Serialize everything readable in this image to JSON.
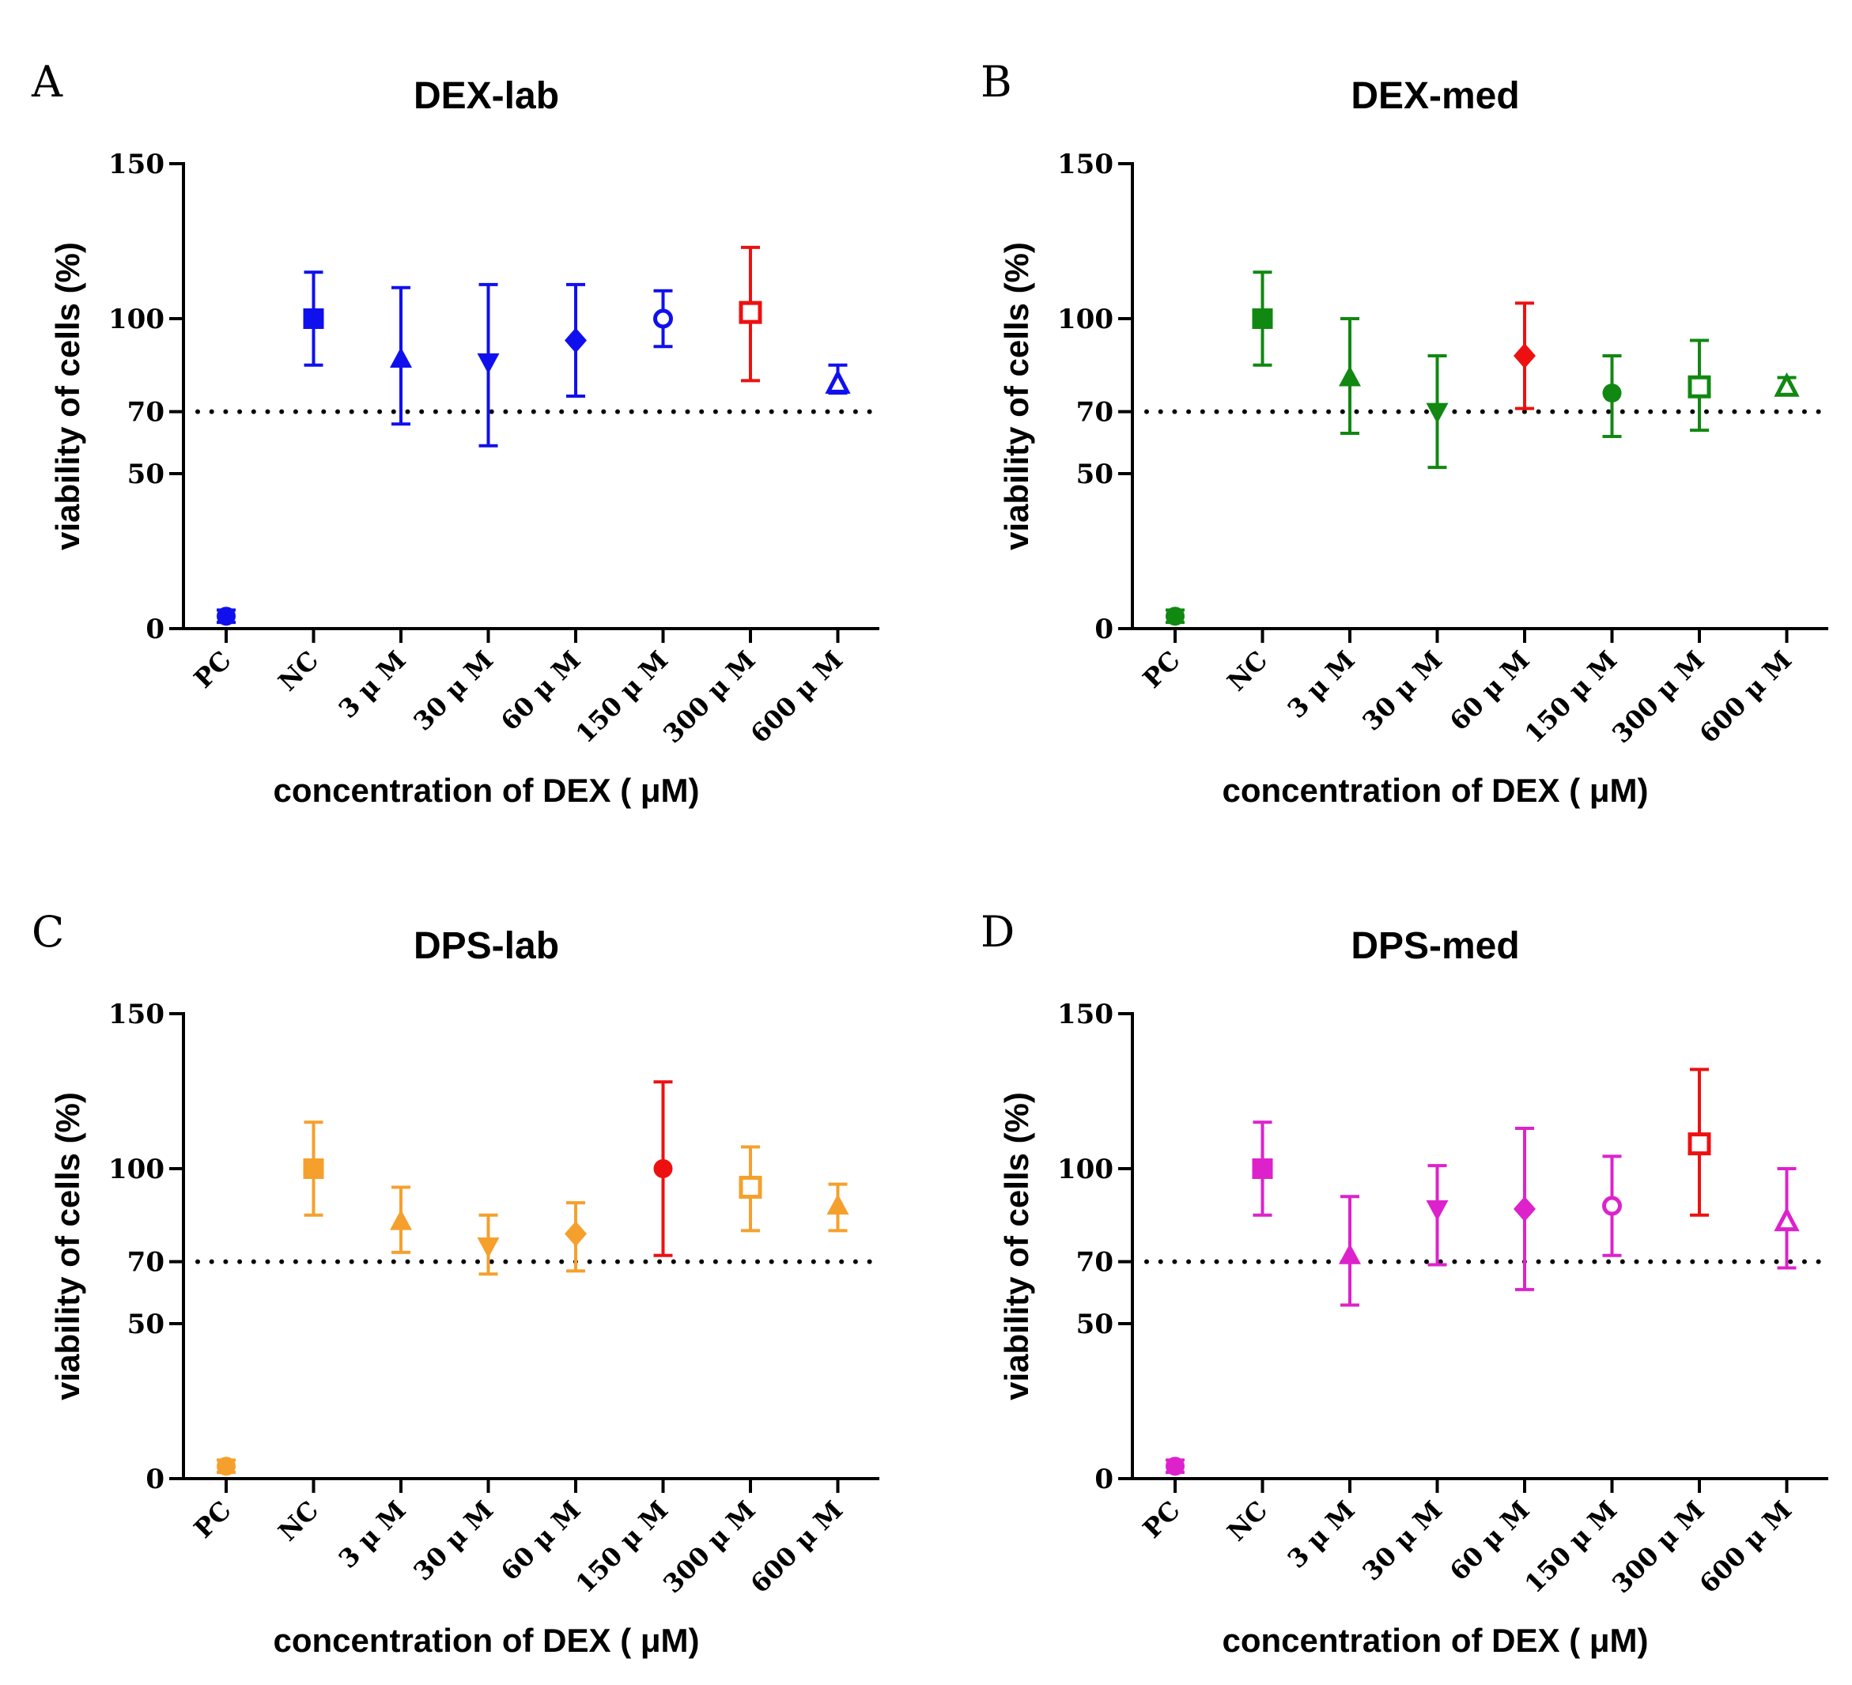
{
  "figure": {
    "background": "#ffffff"
  },
  "chart_data": [
    {
      "letter": "A",
      "type": "scatter",
      "title": "DEX-lab",
      "xlabel": "concentration of DEX ( μM)",
      "ylabel": "viability of cells (%)",
      "categories": [
        "PC",
        "NC",
        "3 μ M",
        "30 μ M",
        "60 μ M",
        "150 μ M",
        "300 μ M",
        "600 μ M"
      ],
      "yticks": [
        0,
        50,
        70,
        100,
        150
      ],
      "ylim": [
        0,
        150
      ],
      "threshold": 70,
      "color": "#1010ee",
      "highlight_color": "#ee1010",
      "values": [
        4,
        100,
        87,
        86,
        93,
        100,
        102,
        79
      ],
      "err_low": [
        2,
        85,
        66,
        59,
        75,
        91,
        80,
        76
      ],
      "err_high": [
        6,
        115,
        110,
        111,
        111,
        109,
        123,
        85
      ],
      "markers": [
        "circle",
        "square",
        "triangle",
        "triangle-down",
        "diamond",
        "circle-open",
        "square-open",
        "triangle-open"
      ],
      "highlight": [
        false,
        false,
        false,
        false,
        false,
        false,
        true,
        false
      ]
    },
    {
      "letter": "B",
      "type": "scatter",
      "title": "DEX-med",
      "xlabel": "concentration of DEX ( μM)",
      "ylabel": "viability of cells (%)",
      "categories": [
        "PC",
        "NC",
        "3 μ M",
        "30 μ M",
        "60 μ M",
        "150 μ M",
        "300 μ M",
        "600 μ M"
      ],
      "yticks": [
        0,
        50,
        70,
        100,
        150
      ],
      "ylim": [
        0,
        150
      ],
      "threshold": 70,
      "color": "#118811",
      "highlight_color": "#ee1010",
      "values": [
        4,
        100,
        81,
        70,
        88,
        76,
        78,
        78
      ],
      "err_low": [
        2,
        85,
        63,
        52,
        71,
        62,
        64,
        76
      ],
      "err_high": [
        6,
        115,
        100,
        88,
        105,
        88,
        93,
        81
      ],
      "markers": [
        "circle",
        "square",
        "triangle",
        "triangle-down",
        "diamond",
        "circle",
        "square-open",
        "triangle-open"
      ],
      "highlight": [
        false,
        false,
        false,
        false,
        true,
        false,
        false,
        false
      ]
    },
    {
      "letter": "C",
      "type": "scatter",
      "title": "DPS-lab",
      "xlabel": "concentration of DEX ( μM)",
      "ylabel": "viability of cells (%)",
      "categories": [
        "PC",
        "NC",
        "3 μ M",
        "30 μ M",
        "60 μ M",
        "150 μ M",
        "300 μ M",
        "600 μ M"
      ],
      "yticks": [
        0,
        50,
        70,
        100,
        150
      ],
      "ylim": [
        0,
        150
      ],
      "threshold": 70,
      "color": "#f5a02d",
      "highlight_color": "#ee1010",
      "values": [
        4,
        100,
        83,
        75,
        79,
        100,
        94,
        88
      ],
      "err_low": [
        2,
        85,
        73,
        66,
        67,
        72,
        80,
        80
      ],
      "err_high": [
        6,
        115,
        94,
        85,
        89,
        128,
        107,
        95
      ],
      "markers": [
        "circle",
        "square",
        "triangle",
        "triangle-down",
        "diamond",
        "circle",
        "square-open",
        "triangle"
      ],
      "highlight": [
        false,
        false,
        false,
        false,
        false,
        true,
        false,
        false
      ]
    },
    {
      "letter": "D",
      "type": "scatter",
      "title": "DPS-med",
      "xlabel": "concentration of DEX ( μM)",
      "ylabel": "viability of cells (%)",
      "categories": [
        "PC",
        "NC",
        "3 μ M",
        "30 μ M",
        "60 μ M",
        "150 μ M",
        "300 μ M",
        "600 μ M"
      ],
      "yticks": [
        0,
        50,
        70,
        100,
        150
      ],
      "ylim": [
        0,
        150
      ],
      "threshold": 70,
      "color": "#dd22cc",
      "highlight_color": "#ee1010",
      "values": [
        4,
        100,
        72,
        87,
        87,
        88,
        108,
        83
      ],
      "err_low": [
        2,
        85,
        56,
        69,
        61,
        72,
        85,
        68
      ],
      "err_high": [
        6,
        115,
        91,
        101,
        113,
        104,
        132,
        100
      ],
      "markers": [
        "circle",
        "square",
        "triangle",
        "triangle-down",
        "diamond",
        "circle-open",
        "square-open",
        "triangle-open"
      ],
      "highlight": [
        false,
        false,
        false,
        false,
        false,
        false,
        true,
        false
      ]
    }
  ]
}
